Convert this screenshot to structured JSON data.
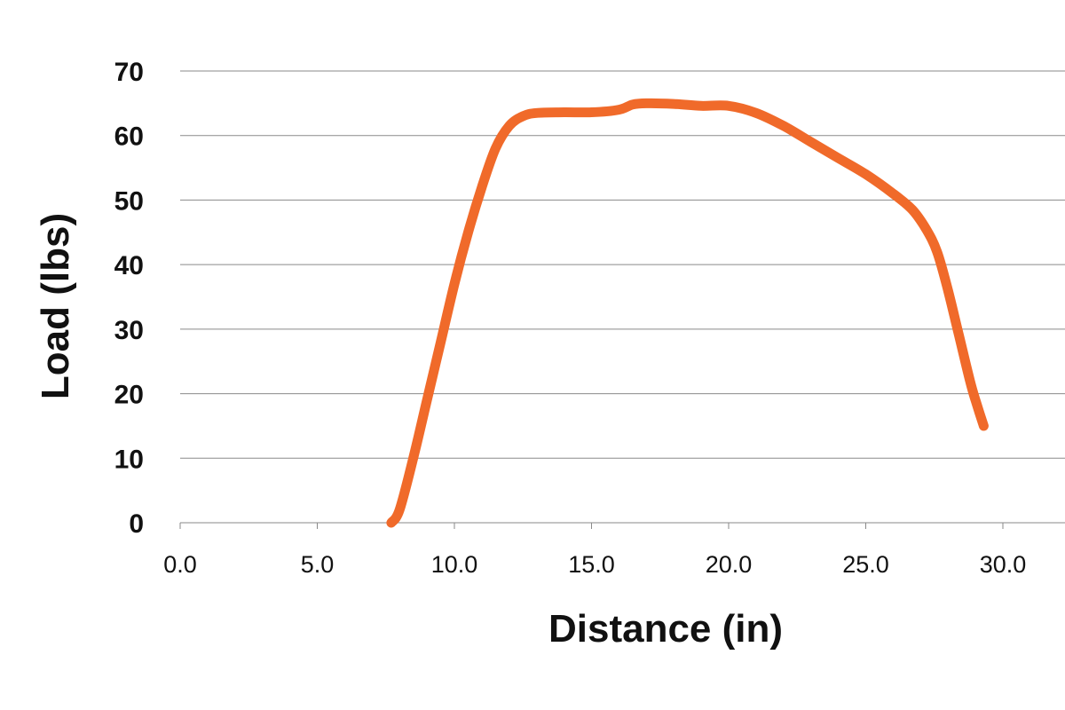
{
  "chart_data": {
    "type": "line",
    "title": "",
    "xlabel": "Distance (in)",
    "ylabel": "Load (lbs)",
    "xlim": [
      0,
      32
    ],
    "ylim": [
      0,
      70
    ],
    "x_ticks": [
      "0.0",
      "5.0",
      "10.0",
      "15.0",
      "20.0",
      "25.0",
      "30.0"
    ],
    "y_ticks": [
      "0",
      "10",
      "20",
      "30",
      "40",
      "50",
      "60",
      "70"
    ],
    "grid": "horizontal",
    "legend": "none",
    "series": [
      {
        "color": "#F06A2A",
        "x": [
          7.7,
          8.0,
          8.5,
          9.0,
          9.5,
          10.0,
          10.5,
          11.0,
          11.5,
          12.0,
          12.5,
          13.0,
          14.0,
          15.0,
          16.0,
          16.5,
          17.0,
          18.0,
          19.0,
          20.0,
          21.0,
          22.0,
          23.0,
          24.0,
          25.0,
          26.0,
          26.7,
          27.2,
          27.6,
          28.0,
          28.4,
          28.8,
          29.0,
          29.3
        ],
        "y": [
          0,
          2,
          10,
          19,
          28,
          37,
          45,
          52,
          58,
          61.5,
          63,
          63.5,
          63.6,
          63.6,
          64,
          64.8,
          65,
          64.9,
          64.6,
          64.6,
          63.5,
          61.5,
          59,
          56.5,
          54,
          51,
          48.5,
          45.5,
          42,
          36,
          29,
          22,
          19,
          15
        ]
      }
    ]
  }
}
